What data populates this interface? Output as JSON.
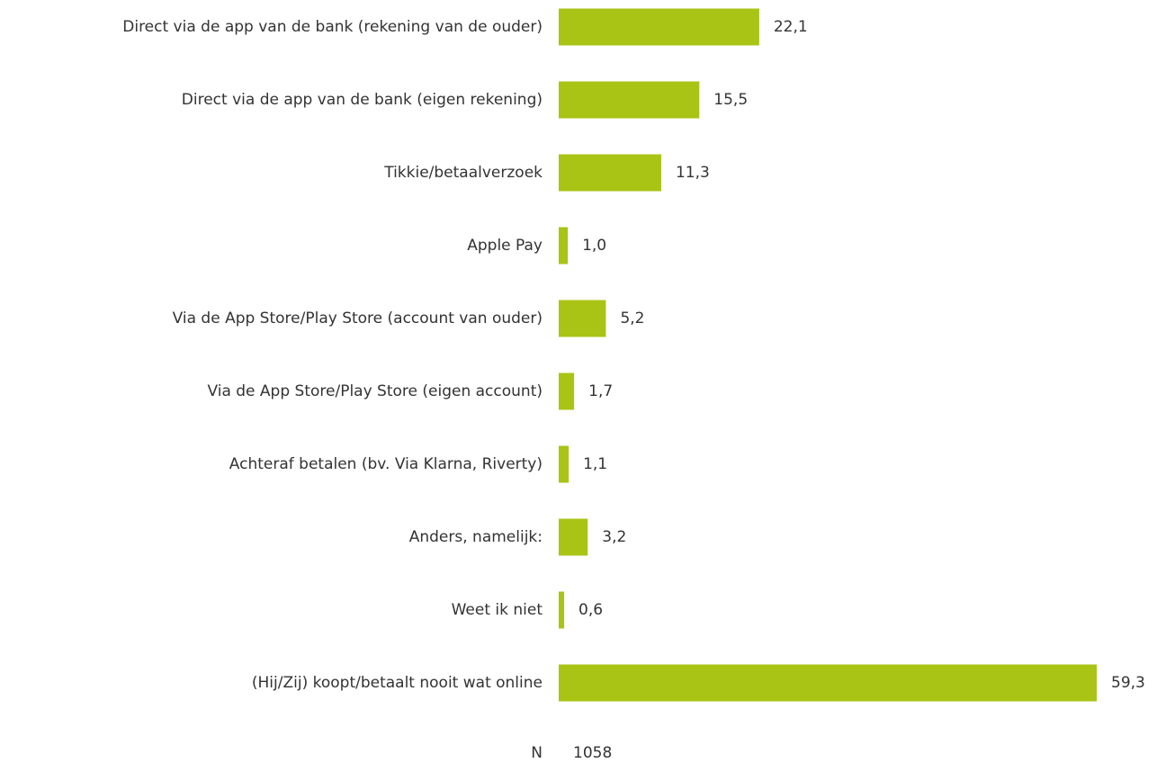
{
  "chart_data": {
    "type": "bar",
    "orientation": "horizontal",
    "categories": [
      "Direct via de app van de bank (rekening van de ouder)",
      "Direct via de app van de bank (eigen rekening)",
      "Tikkie/betaalverzoek",
      "Apple Pay",
      "Via de App Store/Play Store (account van ouder)",
      "Via de App Store/Play Store (eigen account)",
      "Achteraf betalen (bv. Via Klarna, Riverty)",
      "Anders, namelijk:",
      "Weet ik niet",
      "(Hij/Zij) koopt/betaalt nooit wat online"
    ],
    "values": [
      22.1,
      15.5,
      11.3,
      1.0,
      5.2,
      1.7,
      1.1,
      3.2,
      0.6,
      59.3
    ],
    "value_labels": [
      "22,1",
      "15,5",
      "11,3",
      "1,0",
      "5,2",
      "1,7",
      "1,1",
      "3,2",
      "0,6",
      "59,3"
    ],
    "color": "#a9c414",
    "n_label": "N",
    "n_value": 1058
  }
}
